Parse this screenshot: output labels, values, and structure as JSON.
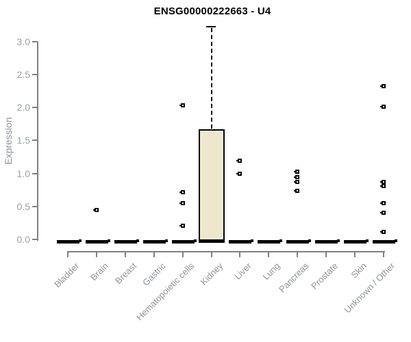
{
  "title": "ENSG00000222663 - U4",
  "chart_data": {
    "type": "box",
    "title": "ENSG00000222663 - U4",
    "xlabel": "",
    "ylabel": "Expression",
    "ylim": [
      0.0,
      3.25
    ],
    "yticks": [
      0.0,
      0.5,
      1.0,
      1.5,
      2.0,
      2.5,
      3.0
    ],
    "grid": false,
    "legend": "none",
    "colors": {
      "box_fill": "#EDE8CD",
      "box_border": "#000000",
      "axis": "#7F7F7F",
      "tick_label": "#9AA0A6",
      "category_label": "#8E9399",
      "title": "#000000",
      "background": "#FFFFFF"
    },
    "categories": [
      "Bladder",
      "Brain",
      "Breast",
      "Gastric",
      "Hematopoietic cells",
      "Kidney",
      "Liver",
      "Lung",
      "Pancreas",
      "Prostate",
      "Skin",
      "Unknown / Other"
    ],
    "series": [
      {
        "category": "Bladder",
        "q1": 0,
        "median": 0,
        "q3": 0,
        "whisker_low": 0,
        "whisker_high": 0,
        "outliers": []
      },
      {
        "category": "Brain",
        "q1": 0,
        "median": 0,
        "q3": 0,
        "whisker_low": 0,
        "whisker_high": 0,
        "outliers": [
          0.45
        ]
      },
      {
        "category": "Breast",
        "q1": 0,
        "median": 0,
        "q3": 0,
        "whisker_low": 0,
        "whisker_high": 0,
        "outliers": []
      },
      {
        "category": "Gastric",
        "q1": 0,
        "median": 0,
        "q3": 0,
        "whisker_low": 0,
        "whisker_high": 0,
        "outliers": []
      },
      {
        "category": "Hematopoietic cells",
        "q1": 0,
        "median": 0,
        "q3": 0,
        "whisker_low": 0,
        "whisker_high": 0,
        "outliers": [
          2.03,
          0.72,
          0.55,
          0.21
        ]
      },
      {
        "category": "Kidney",
        "q1": 0,
        "median": 0,
        "q3": 1.66,
        "whisker_low": 0,
        "whisker_high": 3.22,
        "outliers": []
      },
      {
        "category": "Liver",
        "q1": 0,
        "median": 0,
        "q3": 0,
        "whisker_low": 0,
        "whisker_high": 0,
        "outliers": [
          1.19,
          0.99
        ]
      },
      {
        "category": "Lung",
        "q1": 0,
        "median": 0,
        "q3": 0,
        "whisker_low": 0,
        "whisker_high": 0,
        "outliers": []
      },
      {
        "category": "Pancreas",
        "q1": 0,
        "median": 0,
        "q3": 0,
        "whisker_low": 0,
        "whisker_high": 0,
        "outliers": [
          1.03,
          0.94,
          0.87,
          0.74
        ]
      },
      {
        "category": "Prostate",
        "q1": 0,
        "median": 0,
        "q3": 0,
        "whisker_low": 0,
        "whisker_high": 0,
        "outliers": []
      },
      {
        "category": "Skin",
        "q1": 0,
        "median": 0,
        "q3": 0,
        "whisker_low": 0,
        "whisker_high": 0,
        "outliers": []
      },
      {
        "category": "Unknown / Other",
        "q1": 0,
        "median": 0,
        "q3": 0,
        "whisker_low": 0,
        "whisker_high": 0,
        "outliers": [
          2.32,
          2.01,
          0.87,
          0.81,
          0.55,
          0.4,
          0.11
        ]
      }
    ]
  }
}
